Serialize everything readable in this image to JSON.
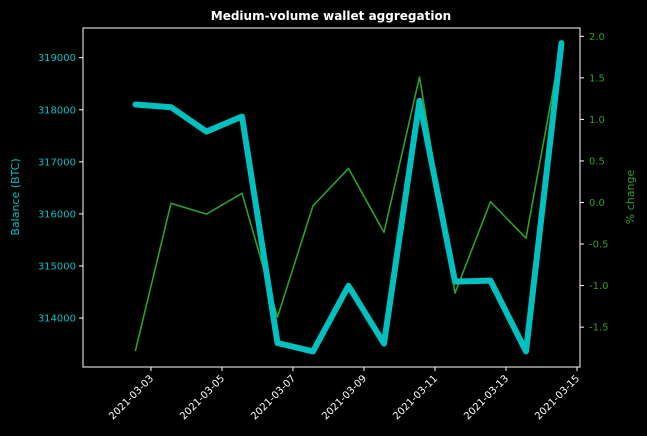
{
  "chart_data": {
    "type": "line",
    "title": "Medium-volume wallet aggregation",
    "x": [
      "2021-03-02",
      "2021-03-03",
      "2021-03-04",
      "2021-03-05",
      "2021-03-06",
      "2021-03-07",
      "2021-03-08",
      "2021-03-09",
      "2021-03-10",
      "2021-03-11",
      "2021-03-12",
      "2021-03-13",
      "2021-03-14"
    ],
    "x_ticks": [
      "2021-03-03",
      "2021-03-05",
      "2021-03-07",
      "2021-03-09",
      "2021-03-11",
      "2021-03-13",
      "2021-03-15"
    ],
    "xlim": [
      "2021-03-01",
      "2021-03-15"
    ],
    "series": [
      {
        "axis": "left",
        "color": "#00c0c0",
        "values": [
          318100,
          318050,
          317580,
          317870,
          313520,
          313360,
          314620,
          313510,
          318170,
          314700,
          314720,
          313360,
          319280
        ]
      },
      {
        "axis": "right",
        "color": "#2ca02c",
        "values": [
          -1.78,
          -0.01,
          -0.14,
          0.11,
          -1.38,
          -0.04,
          0.41,
          -0.36,
          1.51,
          -1.09,
          0.01,
          -0.43,
          1.91
        ]
      }
    ],
    "y_left": {
      "label": "Balance (BTC)",
      "color": "#00c0c0",
      "ticks": [
        314000,
        315000,
        316000,
        317000,
        318000,
        319000
      ],
      "lim": [
        313060,
        319570
      ]
    },
    "y_right": {
      "label": "% change",
      "color": "#2ca02c",
      "ticks": [
        "-1.5",
        "-1.0",
        "-0.5",
        "0.0",
        "0.5",
        "1.0",
        "1.5",
        "2.0"
      ],
      "lim": [
        -1.98,
        2.1
      ]
    },
    "grid": false,
    "legend": "none",
    "background": "#000000"
  }
}
